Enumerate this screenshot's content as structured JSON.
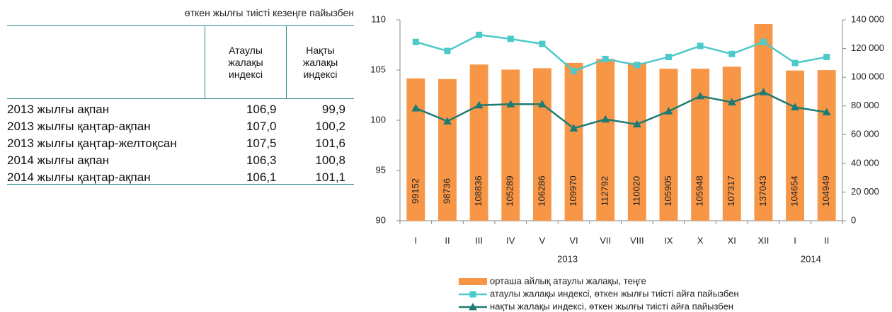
{
  "table": {
    "caption": "өткен жылғы тиісті кезеңге пайызбен",
    "headers": [
      "Атаулы жалақы индексі",
      "Нақты жалақы индексі"
    ],
    "rows": [
      [
        "2013 жылғы ақпан",
        "106,9",
        "99,9"
      ],
      [
        "2013 жылғы қаңтар-ақпан",
        "107,0",
        "100,2"
      ],
      [
        "2013 жылғы қаңтар-желтоқсан",
        "107,5",
        "101,6"
      ],
      [
        "2014 жылғы ақпан",
        "106,3",
        "100,8"
      ],
      [
        "2014 жылғы қаңтар-ақпан",
        "106,1",
        "101,1"
      ]
    ]
  },
  "chart_data": {
    "type": "bar",
    "categories": [
      "I",
      "II",
      "III",
      "IV",
      "V",
      "VI",
      "VII",
      "VIII",
      "IX",
      "X",
      "XI",
      "XII",
      "I",
      "II"
    ],
    "x_groups": [
      "2013",
      "2014"
    ],
    "series": [
      {
        "name": "орташа айлық атаулы жалақы, теңге",
        "type": "bar",
        "axis": "y2",
        "color": "#f79646",
        "values": [
          99152,
          98736,
          108836,
          105289,
          106286,
          109970,
          112792,
          110020,
          105905,
          105948,
          107317,
          137043,
          104654,
          104949
        ]
      },
      {
        "name": "атаулы жалақы индексі, өткен жылғы тиісті айға пайызбен",
        "type": "line",
        "marker": "square",
        "color": "#4cc9c9",
        "values": [
          107.8,
          106.9,
          108.5,
          108.1,
          107.6,
          104.9,
          106.1,
          105.5,
          106.3,
          107.4,
          106.6,
          107.8,
          105.7,
          106.3
        ]
      },
      {
        "name": "нақты жалақы индексі, өткен жылғы тиісті айға пайызбен",
        "type": "line",
        "marker": "triangle",
        "color": "#1e7b72",
        "values": [
          101.2,
          99.9,
          101.5,
          101.6,
          101.6,
          99.2,
          100.1,
          99.6,
          100.9,
          102.4,
          101.8,
          102.8,
          101.3,
          100.8
        ]
      }
    ],
    "ylim": [
      90,
      110
    ],
    "yticks": [
      90,
      95,
      100,
      105,
      110
    ],
    "y2lim": [
      0,
      140000
    ],
    "y2ticks": [
      0,
      {
        "value": 20000,
        "label": "20 000"
      },
      {
        "value": 40000,
        "label": "40 000"
      },
      {
        "value": 60000,
        "label": "60 000"
      },
      {
        "value": 80000,
        "label": "80 000"
      },
      {
        "value": 100000,
        "label": "100 000"
      },
      {
        "value": 120000,
        "label": "120 000"
      },
      {
        "value": 140000,
        "label": "140 000"
      }
    ],
    "grid": false
  }
}
